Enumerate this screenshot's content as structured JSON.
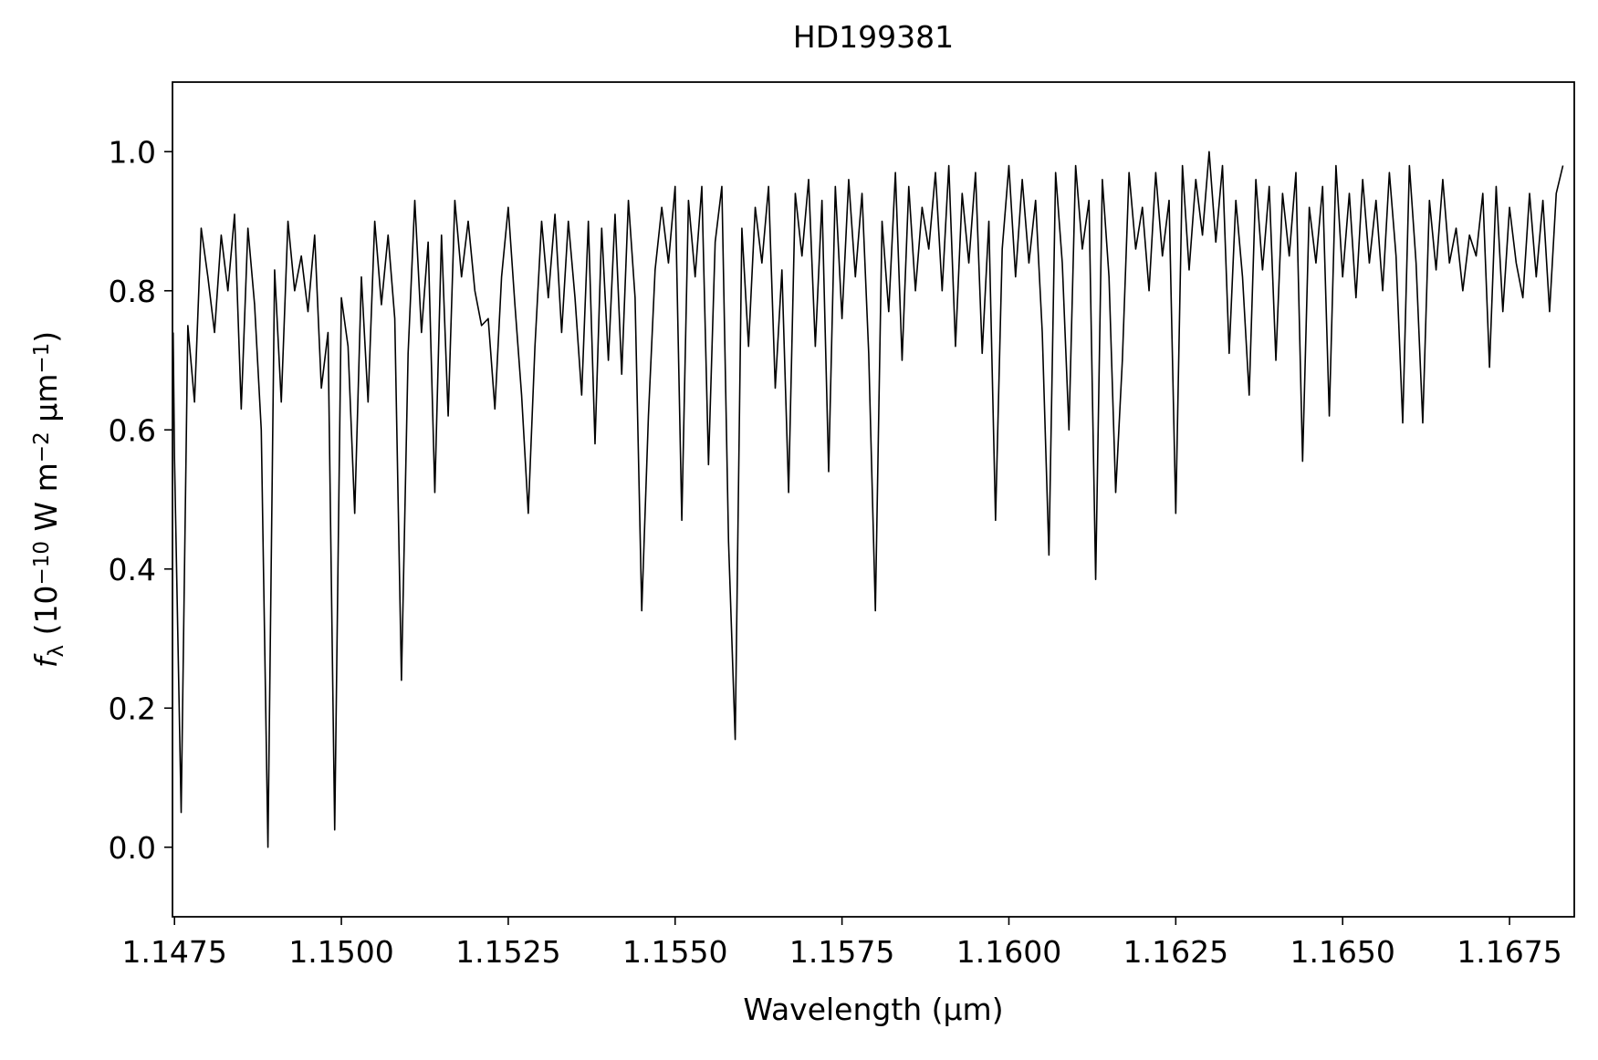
{
  "chart_data": {
    "type": "line",
    "title": "HD199381",
    "xlabel": "Wavelength (μm)",
    "ylabel": [
      "f",
      "λ",
      " (10",
      "−10",
      " W m",
      "−2",
      " μm",
      "−1",
      ")"
    ],
    "xlim": [
      1.14747,
      1.16847
    ],
    "ylim": [
      -0.1,
      1.1
    ],
    "xticks": [
      1.1475,
      {
        "value": 1.15,
        "label": "1.1500"
      },
      1.1525,
      {
        "value": 1.155,
        "label": "1.1550"
      },
      1.1575,
      {
        "value": 1.16,
        "label": "1.1600"
      },
      1.1625,
      {
        "value": 1.165,
        "label": "1.1650"
      },
      1.1675
    ],
    "yticks": [
      {
        "value": 0,
        "label": "0.0"
      },
      0.2,
      0.4,
      0.6,
      0.8,
      {
        "value": 1,
        "label": "1.0"
      }
    ],
    "grid": false,
    "series": [
      {
        "color": "#000000",
        "x": [
          1.14748,
          1.1475,
          1.1476,
          1.1477,
          1.1478,
          1.1479,
          1.148,
          1.1481,
          1.1482,
          1.1483,
          1.1484,
          1.1485,
          1.1486,
          1.1487,
          1.1488,
          1.1489,
          1.149,
          1.1491,
          1.1492,
          1.1493,
          1.1494,
          1.1495,
          1.1496,
          1.1497,
          1.1498,
          1.1499,
          1.15,
          1.1501,
          1.1502,
          1.1503,
          1.1504,
          1.1505,
          1.1506,
          1.1507,
          1.1508,
          1.1509,
          1.151,
          1.1511,
          1.1512,
          1.1513,
          1.1514,
          1.1515,
          1.1516,
          1.1517,
          1.1518,
          1.1519,
          1.152,
          1.1521,
          1.1522,
          1.1523,
          1.1524,
          1.1525,
          1.1526,
          1.1527,
          1.1528,
          1.1529,
          1.153,
          1.1531,
          1.1532,
          1.1533,
          1.1534,
          1.1535,
          1.1536,
          1.1537,
          1.1538,
          1.1539,
          1.154,
          1.1541,
          1.1542,
          1.1543,
          1.1544,
          1.1545,
          1.1546,
          1.1547,
          1.1548,
          1.1549,
          1.155,
          1.1551,
          1.1552,
          1.1553,
          1.1554,
          1.1555,
          1.1556,
          1.1557,
          1.1558,
          1.1559,
          1.156,
          1.1561,
          1.1562,
          1.1563,
          1.1564,
          1.1565,
          1.1566,
          1.1567,
          1.1568,
          1.1569,
          1.157,
          1.1571,
          1.1572,
          1.1573,
          1.1574,
          1.1575,
          1.1576,
          1.1577,
          1.1578,
          1.1579,
          1.158,
          1.1581,
          1.1582,
          1.1583,
          1.1584,
          1.1585,
          1.1586,
          1.1587,
          1.1588,
          1.1589,
          1.159,
          1.1591,
          1.1592,
          1.1593,
          1.1594,
          1.1595,
          1.1596,
          1.1597,
          1.1598,
          1.1599,
          1.16,
          1.1601,
          1.1602,
          1.1603,
          1.1604,
          1.1605,
          1.1606,
          1.1607,
          1.1608,
          1.1609,
          1.161,
          1.1611,
          1.1612,
          1.1613,
          1.1614,
          1.1615,
          1.1616,
          1.1617,
          1.1618,
          1.1619,
          1.162,
          1.1621,
          1.1622,
          1.1623,
          1.1624,
          1.1625,
          1.1626,
          1.1627,
          1.1628,
          1.1629,
          1.163,
          1.1631,
          1.1632,
          1.1633,
          1.1634,
          1.1635,
          1.1636,
          1.1637,
          1.1638,
          1.1639,
          1.164,
          1.1641,
          1.1642,
          1.1643,
          1.1644,
          1.1645,
          1.1646,
          1.1647,
          1.1648,
          1.1649,
          1.165,
          1.1651,
          1.1652,
          1.1653,
          1.1654,
          1.1655,
          1.1656,
          1.1657,
          1.1658,
          1.1659,
          1.166,
          1.1661,
          1.1662,
          1.1663,
          1.1664,
          1.1665,
          1.1666,
          1.1667,
          1.1668,
          1.1669,
          1.167,
          1.1671,
          1.1672,
          1.1673,
          1.1674,
          1.1675,
          1.1676,
          1.1677,
          1.1678,
          1.1679,
          1.168,
          1.1681,
          1.1682,
          1.1683
        ],
        "values": [
          0.74,
          0.56,
          0.05,
          0.75,
          0.64,
          0.89,
          0.82,
          0.74,
          0.88,
          0.8,
          0.91,
          0.63,
          0.89,
          0.78,
          0.6,
          0.0,
          0.83,
          0.64,
          0.9,
          0.8,
          0.85,
          0.77,
          0.88,
          0.66,
          0.74,
          0.025,
          0.79,
          0.72,
          0.48,
          0.82,
          0.64,
          0.9,
          0.78,
          0.88,
          0.76,
          0.24,
          0.71,
          0.93,
          0.74,
          0.87,
          0.51,
          0.88,
          0.62,
          0.93,
          0.82,
          0.9,
          0.8,
          0.75,
          0.76,
          0.63,
          0.82,
          0.92,
          0.78,
          0.65,
          0.48,
          0.72,
          0.9,
          0.79,
          0.91,
          0.74,
          0.9,
          0.79,
          0.65,
          0.9,
          0.58,
          0.89,
          0.7,
          0.91,
          0.68,
          0.93,
          0.79,
          0.34,
          0.62,
          0.83,
          0.92,
          0.84,
          0.95,
          0.47,
          0.93,
          0.82,
          0.95,
          0.55,
          0.87,
          0.95,
          0.44,
          0.155,
          0.89,
          0.72,
          0.92,
          0.84,
          0.95,
          0.66,
          0.83,
          0.51,
          0.94,
          0.85,
          0.96,
          0.72,
          0.93,
          0.54,
          0.95,
          0.76,
          0.96,
          0.82,
          0.94,
          0.71,
          0.34,
          0.9,
          0.77,
          0.97,
          0.7,
          0.95,
          0.8,
          0.92,
          0.86,
          0.97,
          0.8,
          0.98,
          0.72,
          0.94,
          0.84,
          0.97,
          0.71,
          0.9,
          0.47,
          0.86,
          0.98,
          0.82,
          0.96,
          0.84,
          0.93,
          0.74,
          0.42,
          0.97,
          0.84,
          0.6,
          0.98,
          0.86,
          0.93,
          0.385,
          0.96,
          0.82,
          0.51,
          0.7,
          0.97,
          0.86,
          0.92,
          0.8,
          0.97,
          0.85,
          0.93,
          0.48,
          0.98,
          0.83,
          0.96,
          0.88,
          1.0,
          0.87,
          0.98,
          0.71,
          0.93,
          0.82,
          0.65,
          0.96,
          0.83,
          0.95,
          0.7,
          0.94,
          0.85,
          0.97,
          0.555,
          0.92,
          0.84,
          0.95,
          0.62,
          0.98,
          0.82,
          0.94,
          0.79,
          0.96,
          0.84,
          0.93,
          0.8,
          0.97,
          0.85,
          0.61,
          0.98,
          0.84,
          0.61,
          0.93,
          0.83,
          0.96,
          0.84,
          0.89,
          0.8,
          0.88,
          0.85,
          0.94,
          0.69,
          0.95,
          0.77,
          0.92,
          0.84,
          0.79,
          0.94,
          0.82,
          0.93,
          0.77,
          0.94,
          0.98
        ]
      }
    ]
  }
}
